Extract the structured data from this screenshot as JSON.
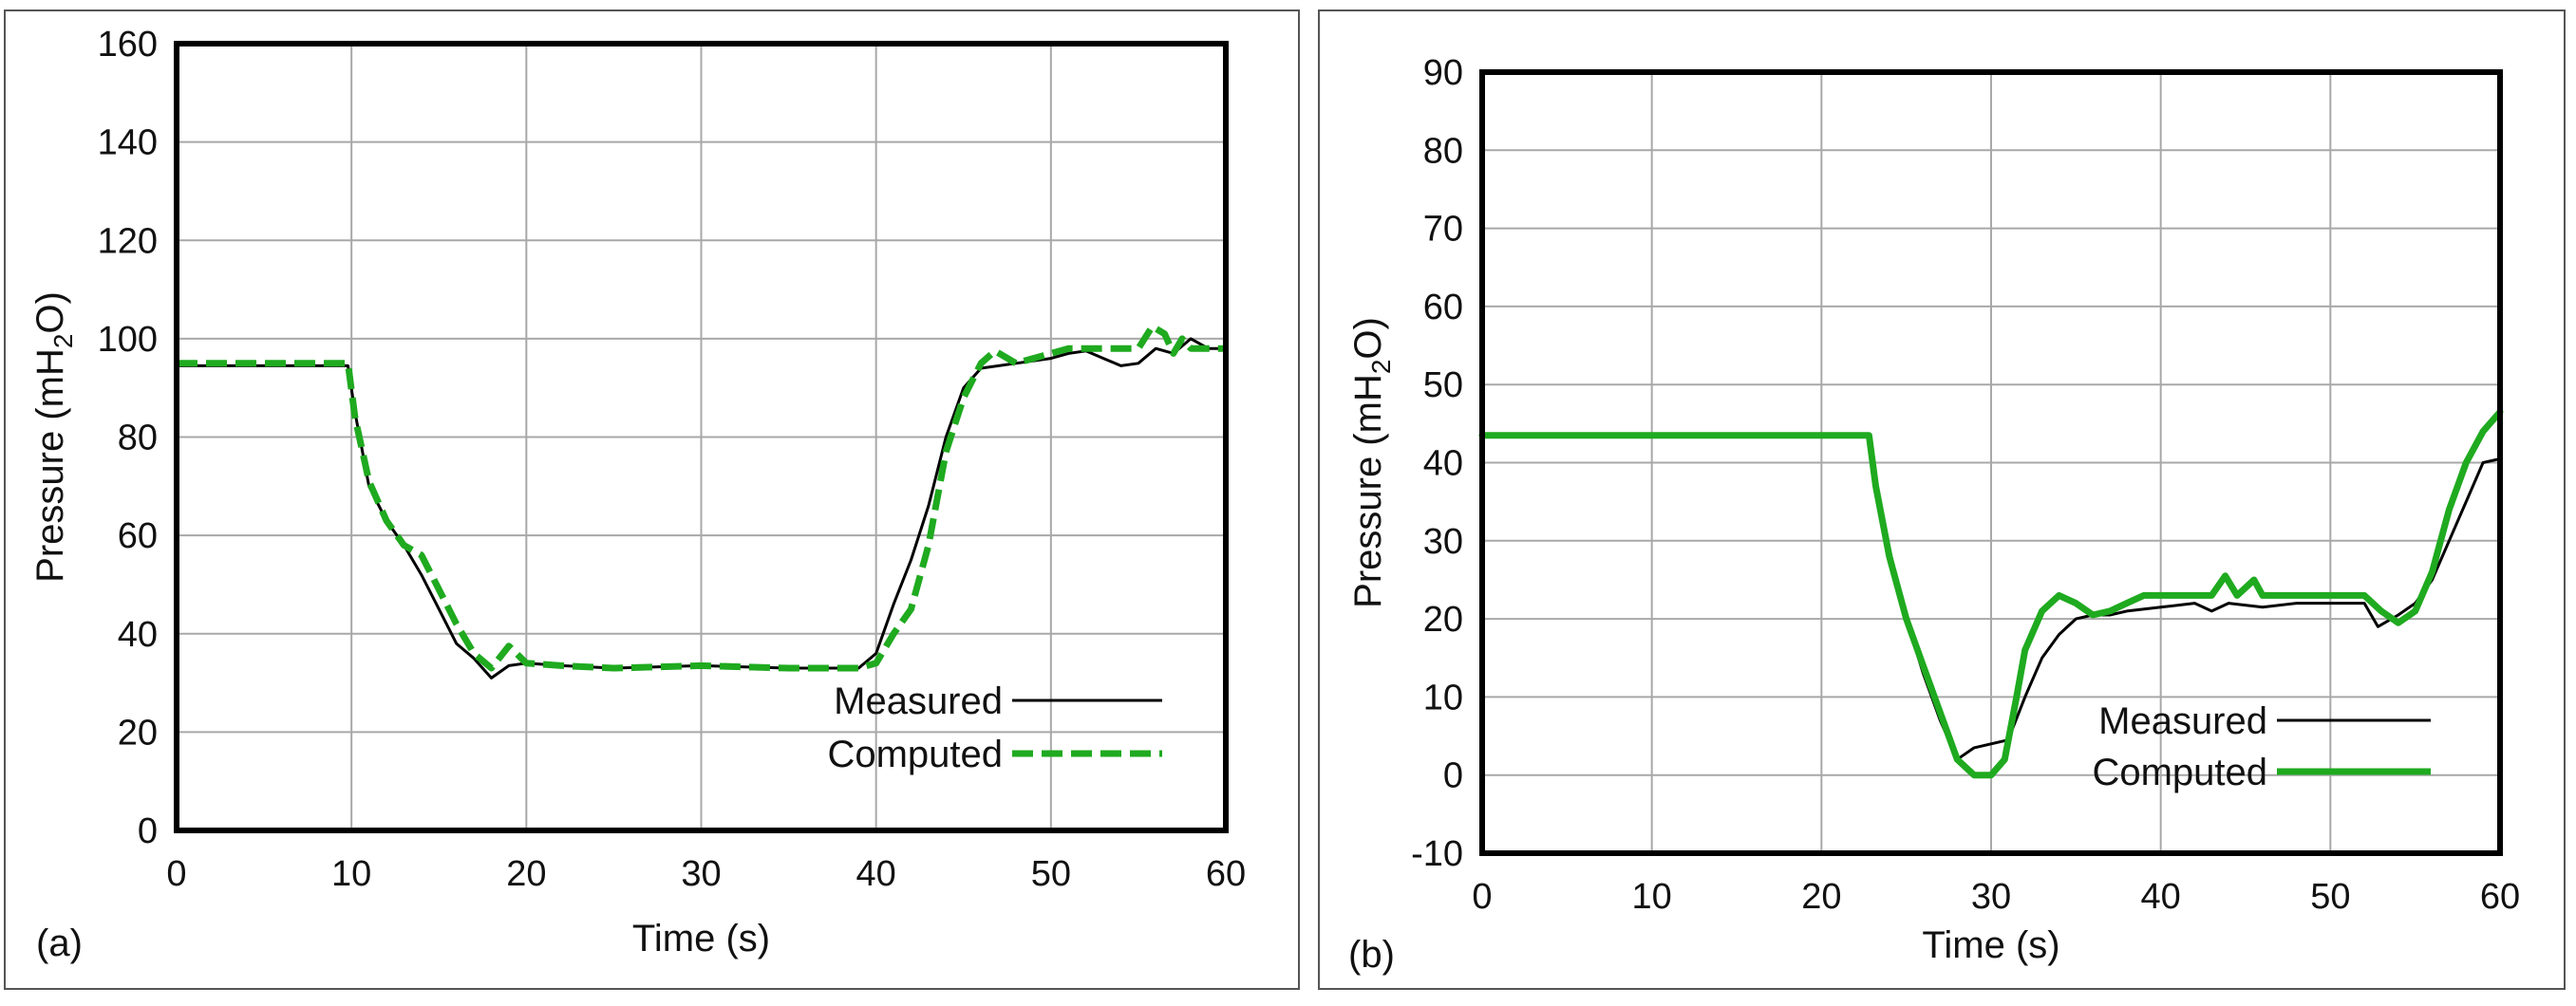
{
  "chart_data": [
    {
      "panel_label": "(a)",
      "type": "line",
      "xlabel": "Time (s)",
      "ylabel_parts": [
        "Pressure (mH",
        "2",
        "O)"
      ],
      "xlim": [
        0,
        60
      ],
      "ylim": [
        0,
        160
      ],
      "xticks": [
        0,
        10,
        20,
        30,
        40,
        50,
        60
      ],
      "yticks": [
        0,
        20,
        40,
        60,
        80,
        100,
        120,
        140,
        160
      ],
      "grid": true,
      "legend_position": "bottom-right",
      "series": [
        {
          "name": "Measured",
          "color": "#000000",
          "style": "solid",
          "points": [
            [
              0,
              94.5
            ],
            [
              9.8,
              94.5
            ],
            [
              10.2,
              85
            ],
            [
              11,
              70
            ],
            [
              12,
              63
            ],
            [
              13,
              58
            ],
            [
              14,
              52
            ],
            [
              15,
              45
            ],
            [
              16,
              38
            ],
            [
              17,
              35
            ],
            [
              18,
              31
            ],
            [
              19,
              33.5
            ],
            [
              20,
              34
            ],
            [
              22,
              33.5
            ],
            [
              25,
              33
            ],
            [
              30,
              33.5
            ],
            [
              35,
              33
            ],
            [
              39,
              33
            ],
            [
              40,
              36
            ],
            [
              41,
              46
            ],
            [
              42,
              55
            ],
            [
              43,
              66
            ],
            [
              44,
              80
            ],
            [
              45,
              90
            ],
            [
              46,
              94
            ],
            [
              48,
              95
            ],
            [
              50,
              96
            ],
            [
              51,
              97
            ],
            [
              52,
              97.5
            ],
            [
              53,
              96
            ],
            [
              54,
              94.5
            ],
            [
              55,
              95
            ],
            [
              56,
              98
            ],
            [
              57,
              97
            ],
            [
              58,
              100
            ],
            [
              59,
              98
            ],
            [
              60,
              98
            ]
          ]
        },
        {
          "name": "Computed",
          "color": "#1faa1f",
          "style": "dashed",
          "points": [
            [
              0,
              95
            ],
            [
              9.8,
              95
            ],
            [
              10.2,
              84
            ],
            [
              11,
              71
            ],
            [
              12,
              63
            ],
            [
              13,
              58
            ],
            [
              14,
              56
            ],
            [
              15,
              49
            ],
            [
              16,
              42
            ],
            [
              17,
              36
            ],
            [
              18,
              33
            ],
            [
              19,
              37.5
            ],
            [
              20,
              34
            ],
            [
              22,
              33.5
            ],
            [
              25,
              33
            ],
            [
              30,
              33.5
            ],
            [
              35,
              33
            ],
            [
              39,
              33
            ],
            [
              40,
              34
            ],
            [
              41,
              40
            ],
            [
              42,
              45
            ],
            [
              43,
              58
            ],
            [
              44,
              77
            ],
            [
              45,
              88
            ],
            [
              46,
              95
            ],
            [
              46.8,
              97.5
            ],
            [
              48,
              95
            ],
            [
              50,
              97
            ],
            [
              51,
              98
            ],
            [
              52,
              98
            ],
            [
              53,
              98
            ],
            [
              54,
              98
            ],
            [
              55,
              98
            ],
            [
              55.8,
              102.5
            ],
            [
              56.5,
              101
            ],
            [
              57,
              97
            ],
            [
              57.5,
              100
            ],
            [
              58,
              98
            ],
            [
              60,
              98
            ]
          ]
        }
      ]
    },
    {
      "panel_label": "(b)",
      "type": "line",
      "xlabel": "Time (s)",
      "ylabel_parts": [
        "Pressure (mH",
        "2",
        "O)"
      ],
      "xlim": [
        0,
        60
      ],
      "ylim": [
        -10,
        90
      ],
      "xticks": [
        0,
        10,
        20,
        30,
        40,
        50,
        60
      ],
      "yticks": [
        -10,
        0,
        10,
        20,
        30,
        40,
        50,
        60,
        70,
        80,
        90
      ],
      "grid": true,
      "legend_position": "bottom-right",
      "series": [
        {
          "name": "Measured",
          "color": "#000000",
          "style": "solid",
          "points": [
            [
              0,
              43.5
            ],
            [
              22.8,
              43.5
            ],
            [
              23.2,
              38
            ],
            [
              24,
              29
            ],
            [
              25,
              20
            ],
            [
              26,
              13
            ],
            [
              27,
              7
            ],
            [
              28,
              2
            ],
            [
              29,
              3.5
            ],
            [
              30,
              4
            ],
            [
              31,
              4.5
            ],
            [
              32,
              10
            ],
            [
              33,
              15
            ],
            [
              34,
              18
            ],
            [
              35,
              20
            ],
            [
              36,
              20.5
            ],
            [
              37,
              20.5
            ],
            [
              38,
              21
            ],
            [
              40,
              21.5
            ],
            [
              42,
              22
            ],
            [
              43,
              21
            ],
            [
              44,
              22
            ],
            [
              46,
              21.5
            ],
            [
              48,
              22
            ],
            [
              50,
              22
            ],
            [
              52,
              22
            ],
            [
              52.8,
              19
            ],
            [
              54,
              20.5
            ],
            [
              55,
              22
            ],
            [
              56,
              25
            ],
            [
              57,
              30
            ],
            [
              58,
              35
            ],
            [
              59,
              40
            ],
            [
              60,
              40.5
            ]
          ]
        },
        {
          "name": "Computed",
          "color": "#1faa1f",
          "style": "solid",
          "points": [
            [
              0,
              43.5
            ],
            [
              22.8,
              43.5
            ],
            [
              23.2,
              37
            ],
            [
              24,
              28
            ],
            [
              25,
              20
            ],
            [
              26,
              14
            ],
            [
              27,
              8
            ],
            [
              28,
              2
            ],
            [
              29,
              0
            ],
            [
              30,
              0
            ],
            [
              30.8,
              2
            ],
            [
              31.5,
              10
            ],
            [
              32,
              16
            ],
            [
              33,
              21
            ],
            [
              34,
              23
            ],
            [
              35,
              22
            ],
            [
              36,
              20.5
            ],
            [
              37,
              21
            ],
            [
              38,
              22
            ],
            [
              39,
              23
            ],
            [
              40,
              23
            ],
            [
              42,
              23
            ],
            [
              43,
              23
            ],
            [
              43.8,
              25.5
            ],
            [
              44.5,
              23
            ],
            [
              45,
              24
            ],
            [
              45.5,
              25
            ],
            [
              46,
              23
            ],
            [
              47,
              23
            ],
            [
              50,
              23
            ],
            [
              52,
              23
            ],
            [
              53,
              21
            ],
            [
              54,
              19.5
            ],
            [
              55,
              21
            ],
            [
              56,
              26
            ],
            [
              57,
              34
            ],
            [
              58,
              40
            ],
            [
              59,
              44
            ],
            [
              60,
              46.5
            ]
          ]
        }
      ]
    }
  ]
}
